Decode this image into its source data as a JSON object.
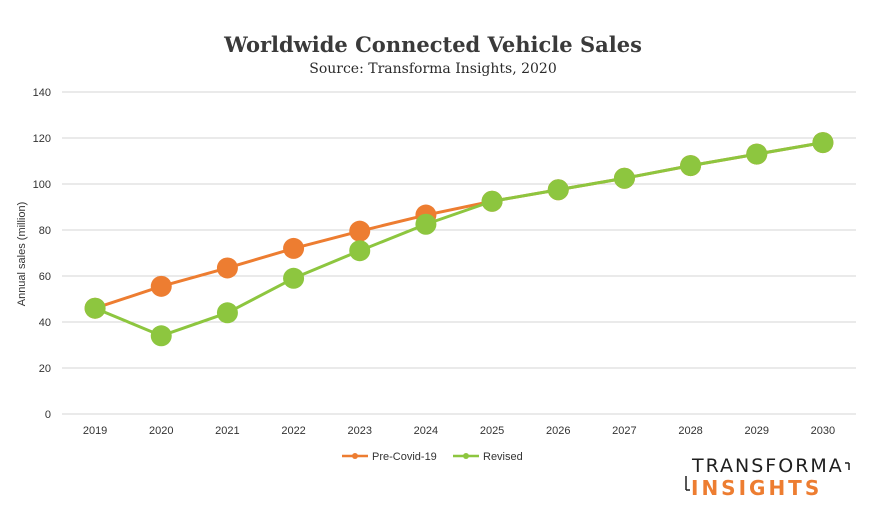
{
  "chart_data": {
    "type": "line",
    "title": "Worldwide Connected Vehicle Sales",
    "subtitle": "Source: Transforma Insights, 2020",
    "ylabel": "Annual sales  (million)",
    "xlabel": "",
    "ylim": [
      0,
      140
    ],
    "yticks": [
      0,
      20,
      40,
      60,
      80,
      100,
      120,
      140
    ],
    "categories": [
      "2019",
      "2020",
      "2021",
      "2022",
      "2023",
      "2024",
      "2025",
      "2026",
      "2027",
      "2028",
      "2029",
      "2030"
    ],
    "grid": true,
    "legend_position": "bottom",
    "series": [
      {
        "name": "Pre-Covid-19",
        "color": "#ed7d31",
        "values": [
          46,
          55.5,
          63.5,
          72,
          79.5,
          86.5,
          92.5,
          97.5,
          102.5,
          108,
          113,
          118
        ]
      },
      {
        "name": "Revised",
        "color": "#8dc63f",
        "values": [
          46,
          34,
          44,
          59,
          71,
          82.5,
          92.5,
          97.5,
          102.5,
          108,
          113,
          118
        ]
      }
    ]
  },
  "logo": {
    "line1": "TRANSFORMA",
    "line2": "INSIGHTS",
    "accent_color": "#ed7d31"
  }
}
